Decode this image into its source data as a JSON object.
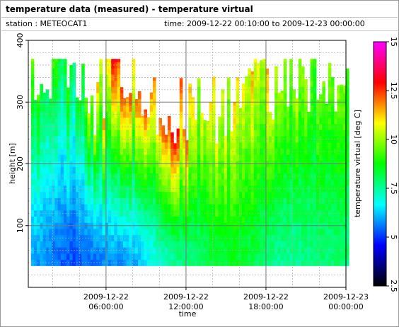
{
  "header": {
    "title": "temperature data (measured) - temperature virtual",
    "station": "station : METEOCAT1",
    "timespan": "time: 2009-12-22 00:10:00 to 2009-12-23 00:00:00"
  },
  "chart_data": {
    "type": "heatmap",
    "title": "temperature data (measured) - temperature virtual",
    "xlabel": "time",
    "ylabel": "height [m]",
    "colorbar_label": "temperature virtual [deg C]",
    "xlim": [
      "2009-12-22 00:10:00",
      "2009-12-23 00:00:00"
    ],
    "ylim": [
      0,
      400
    ],
    "clim": [
      2.5,
      15
    ],
    "x_ticks": [
      {
        "value": "2009-12-22 06:00:00",
        "line1": "2009-12-22",
        "line2": "06:00:00"
      },
      {
        "value": "2009-12-22 12:00:00",
        "line1": "2009-12-22",
        "line2": "12:00:00"
      },
      {
        "value": "2009-12-22 18:00:00",
        "line1": "2009-12-22",
        "line2": "18:00:00"
      },
      {
        "value": "2009-12-23 00:00:00",
        "line1": "2009-12-23",
        "line2": "00:00:00"
      }
    ],
    "y_ticks": [
      100,
      200,
      300,
      400
    ],
    "colorbar_ticks": [
      "2.5",
      "5",
      "7.5",
      "10",
      "12.5",
      "15"
    ],
    "colormap": [
      "#000000",
      "#0000ff",
      "#00ffff",
      "#00ff00",
      "#ffff00",
      "#ff0000",
      "#ff00ff"
    ],
    "grid": true,
    "time_hours": [
      0.5,
      2.0,
      3.5,
      5.0,
      6.5,
      8.0,
      9.5,
      11.0,
      12.5,
      14.0,
      15.5,
      17.0,
      18.5,
      20.0,
      21.5,
      23.0
    ],
    "profiles": [
      {
        "hour": 0.5,
        "top": 355,
        "t_low": 6.0,
        "t_high": 8.8
      },
      {
        "hour": 2.0,
        "top": 365,
        "t_low": 5.5,
        "t_high": 8.5
      },
      {
        "hour": 3.5,
        "top": 340,
        "t_low": 5.2,
        "t_high": 8.6
      },
      {
        "hour": 5.0,
        "top": 300,
        "t_low": 5.5,
        "t_high": 10.5
      },
      {
        "hour": 6.5,
        "top": 355,
        "t_low": 5.8,
        "t_high": 12.5
      },
      {
        "hour": 8.0,
        "top": 340,
        "t_low": 6.0,
        "t_high": 12.0
      },
      {
        "hour": 9.5,
        "top": 310,
        "t_low": 6.8,
        "t_high": 11.5
      },
      {
        "hour": 11.0,
        "top": 280,
        "t_low": 7.5,
        "t_high": 13.0
      },
      {
        "hour": 12.5,
        "top": 300,
        "t_low": 7.8,
        "t_high": 11.0
      },
      {
        "hour": 14.0,
        "top": 290,
        "t_low": 8.3,
        "t_high": 10.5
      },
      {
        "hour": 15.5,
        "top": 290,
        "t_low": 8.5,
        "t_high": 10.8
      },
      {
        "hour": 17.0,
        "top": 350,
        "t_low": 8.2,
        "t_high": 11.0
      },
      {
        "hour": 18.5,
        "top": 330,
        "t_low": 7.6,
        "t_high": 10.8
      },
      {
        "hour": 20.0,
        "top": 355,
        "t_low": 7.5,
        "t_high": 10.0
      },
      {
        "hour": 21.5,
        "top": 330,
        "t_low": 7.8,
        "t_high": 9.8
      },
      {
        "hour": 23.0,
        "top": 300,
        "t_low": 7.8,
        "t_high": 9.6
      }
    ],
    "bottom_height": 35
  }
}
